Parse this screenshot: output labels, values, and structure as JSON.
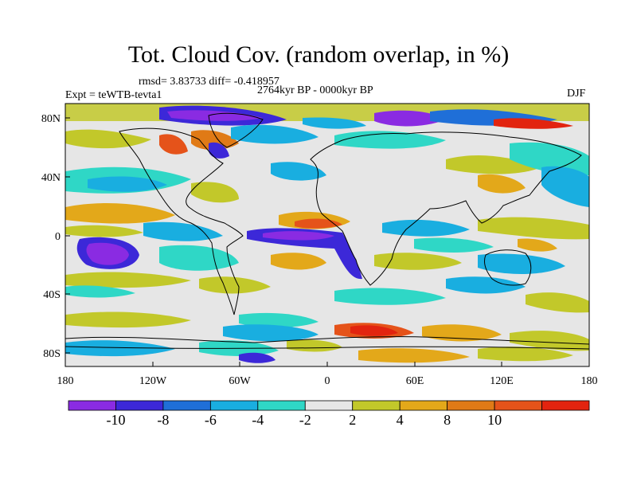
{
  "title": "Tot. Cloud Cov. (random overlap, in %)",
  "stats": "rmsd= 3.83733 diff= -0.418957",
  "period": "2764kyr BP - 0000kyr BP",
  "experiment": "Expt = teWTB-tevta1",
  "season": "DJF",
  "lon_ticks": [
    "180",
    "120W",
    "60W",
    "0",
    "60E",
    "120E",
    "180"
  ],
  "lat_ticks": [
    "80N",
    "40N",
    "0",
    "40S",
    "80S"
  ],
  "colorbar": {
    "labels": [
      "-10",
      "-8",
      "-6",
      "-4",
      "-2",
      "2",
      "4",
      "8",
      "10"
    ],
    "colors": [
      "#8a2be2",
      "#3c28d8",
      "#1f6fd8",
      "#19aee0",
      "#2fd7c6",
      "#e6e6e6",
      "#c2c82a",
      "#e3a81a",
      "#e07a16",
      "#e5531a",
      "#e2240f"
    ]
  }
}
